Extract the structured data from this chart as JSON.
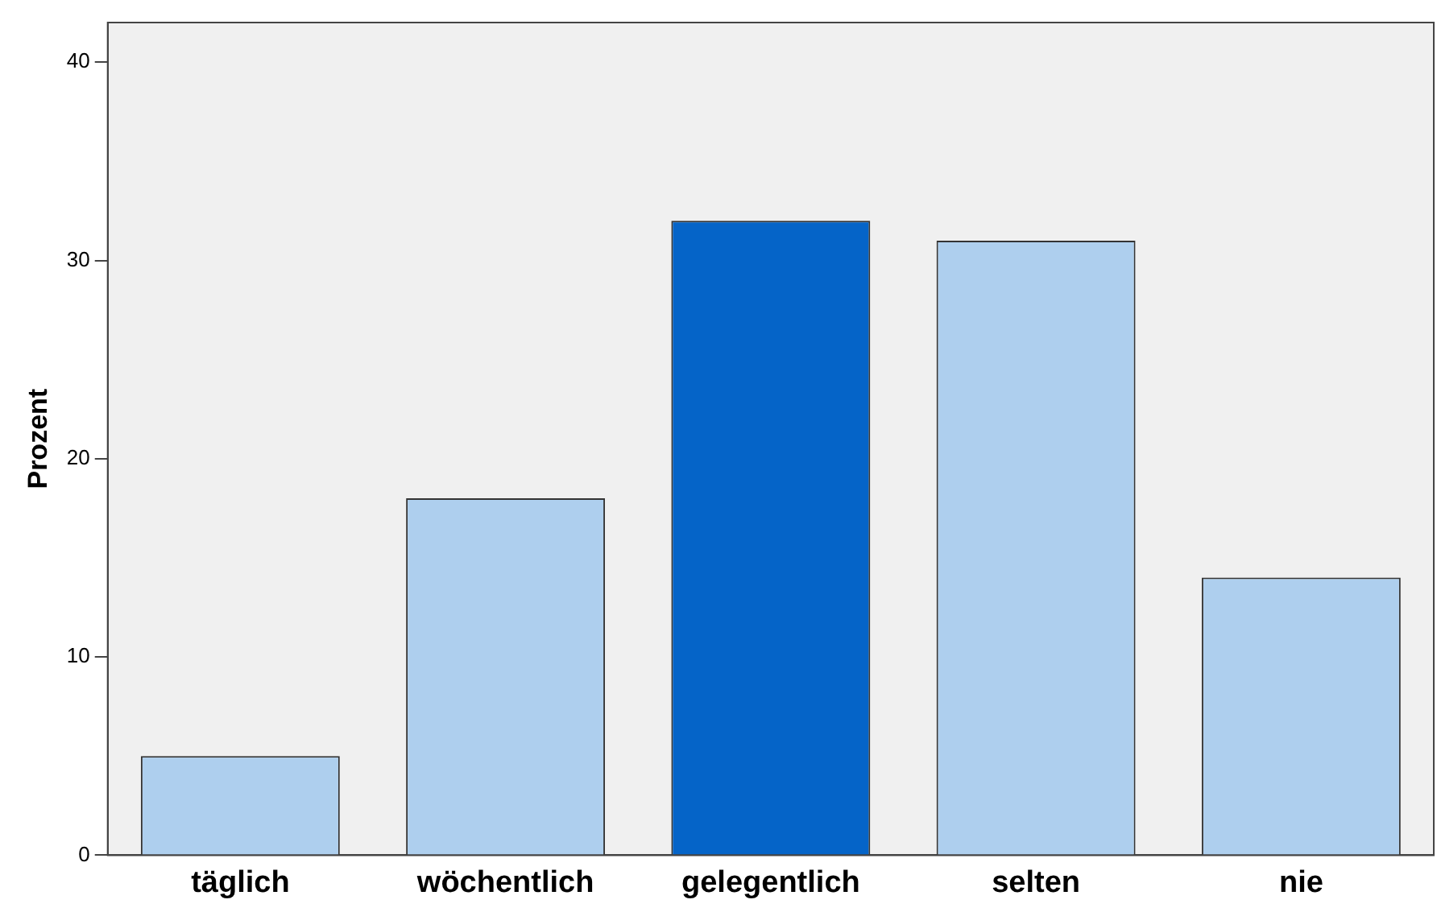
{
  "chart_data": {
    "type": "bar",
    "ylabel": "Prozent",
    "categories": [
      "täglich",
      "wöchentlich",
      "gelegentlich",
      "selten",
      "nie"
    ],
    "values": [
      5,
      18,
      32,
      31,
      14
    ],
    "colors": [
      "#aecfee",
      "#aecfee",
      "#0564c8",
      "#aecfee",
      "#aecfee"
    ],
    "ylim": [
      0,
      42
    ],
    "yticks": [
      0,
      10,
      20,
      30,
      40
    ],
    "grid": false,
    "legend": false
  }
}
